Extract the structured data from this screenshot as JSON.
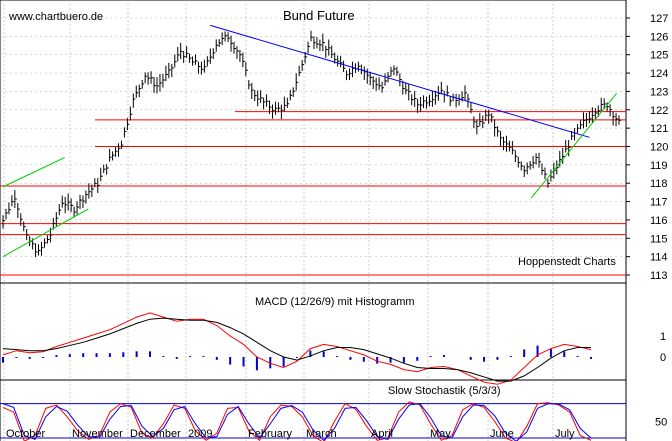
{
  "chart_data": [
    {
      "type": "candlestick",
      "title": "Bund Future",
      "watermark": "www.chartbuero.de",
      "source": "Hoppenstedt Charts",
      "y_axis": {
        "ticks": [
          113,
          114,
          115,
          116,
          117,
          118,
          119,
          120,
          121,
          122,
          123,
          124,
          125,
          126,
          127
        ],
        "ylim": [
          112.6,
          127.6
        ]
      },
      "x_axis": {
        "labels": [
          "October",
          "November",
          "December",
          "2009",
          "February",
          "March",
          "April",
          "May",
          "June",
          "July"
        ]
      },
      "bars_weekly_close": [
        {
          "t": 0,
          "c": 116.0
        },
        {
          "t": 1,
          "c": 117.3
        },
        {
          "t": 2,
          "c": 115.0
        },
        {
          "t": 3,
          "c": 114.2
        },
        {
          "t": 4,
          "c": 115.2
        },
        {
          "t": 5,
          "c": 117.0
        },
        {
          "t": 6,
          "c": 116.6
        },
        {
          "t": 7,
          "c": 117.4
        },
        {
          "t": 8,
          "c": 118.0
        },
        {
          "t": 9,
          "c": 119.3
        },
        {
          "t": 10,
          "c": 120.2
        },
        {
          "t": 11,
          "c": 122.5
        },
        {
          "t": 12,
          "c": 123.9
        },
        {
          "t": 13,
          "c": 123.3
        },
        {
          "t": 14,
          "c": 124.0
        },
        {
          "t": 15,
          "c": 125.2
        },
        {
          "t": 16,
          "c": 124.6
        },
        {
          "t": 17,
          "c": 124.2
        },
        {
          "t": 18,
          "c": 125.6
        },
        {
          "t": 19,
          "c": 126.0
        },
        {
          "t": 20,
          "c": 125.0
        },
        {
          "t": 21,
          "c": 123.0
        },
        {
          "t": 22,
          "c": 122.4
        },
        {
          "t": 23,
          "c": 122.0
        },
        {
          "t": 24,
          "c": 122.2
        },
        {
          "t": 25,
          "c": 124.0
        },
        {
          "t": 26,
          "c": 125.9
        },
        {
          "t": 27,
          "c": 125.6
        },
        {
          "t": 28,
          "c": 124.8
        },
        {
          "t": 29,
          "c": 124.0
        },
        {
          "t": 30,
          "c": 124.5
        },
        {
          "t": 31,
          "c": 123.7
        },
        {
          "t": 32,
          "c": 123.2
        },
        {
          "t": 33,
          "c": 124.3
        },
        {
          "t": 34,
          "c": 123.0
        },
        {
          "t": 35,
          "c": 122.3
        },
        {
          "t": 36,
          "c": 122.6
        },
        {
          "t": 37,
          "c": 123.1
        },
        {
          "t": 38,
          "c": 122.5
        },
        {
          "t": 39,
          "c": 122.9
        },
        {
          "t": 40,
          "c": 121.0
        },
        {
          "t": 41,
          "c": 121.8
        },
        {
          "t": 42,
          "c": 120.4
        },
        {
          "t": 43,
          "c": 119.7
        },
        {
          "t": 44,
          "c": 118.8
        },
        {
          "t": 45,
          "c": 119.4
        },
        {
          "t": 46,
          "c": 118.0
        },
        {
          "t": 47,
          "c": 119.2
        },
        {
          "t": 48,
          "c": 120.4
        },
        {
          "t": 49,
          "c": 121.3
        },
        {
          "t": 50,
          "c": 122.0
        },
        {
          "t": 51,
          "c": 122.3
        },
        {
          "t": 52,
          "c": 121.3
        }
      ],
      "horizontal_lines_red": [
        121.9,
        121.45,
        120.0,
        117.85,
        115.8,
        115.2,
        113.0
      ],
      "trend_lines": [
        {
          "color": "#0000ff",
          "from": [
            17.5,
            126.6
          ],
          "to": [
            49.5,
            120.5
          ]
        },
        {
          "color": "#00cc00",
          "from": [
            0,
            117.8
          ],
          "to": [
            5.2,
            119.4
          ]
        },
        {
          "color": "#00cc00",
          "from": [
            0,
            114.0
          ],
          "to": [
            7.2,
            116.6
          ]
        },
        {
          "color": "#00cc00",
          "from": [
            44.6,
            117.2
          ],
          "to": [
            51.8,
            122.9
          ]
        }
      ]
    },
    {
      "type": "line",
      "title": "MACD (12/26/9) mit Histogramm",
      "y_axis": {
        "ticks": [
          1,
          0
        ],
        "ylim": [
          -2.4,
          2.5
        ]
      },
      "series": [
        {
          "color": "#ff0000",
          "values": [
            0.1,
            0.3,
            0.2,
            0.25,
            0.5,
            0.7,
            0.9,
            1.1,
            1.3,
            1.6,
            1.9,
            2.1,
            1.9,
            1.7,
            1.8,
            1.8,
            1.5,
            1.0,
            0.6,
            0.0,
            -0.3,
            -0.5,
            -0.2,
            0.4,
            0.6,
            0.5,
            0.3,
            0.1,
            -0.2,
            -0.35,
            -0.6,
            -0.7,
            -0.5,
            -0.45,
            -0.6,
            -0.9,
            -1.2,
            -1.3,
            -1.1,
            -0.5,
            0.1,
            0.4,
            0.6,
            0.5,
            0.35
          ]
        },
        {
          "color": "#000000",
          "values": [
            0.4,
            0.35,
            0.3,
            0.3,
            0.4,
            0.55,
            0.7,
            0.9,
            1.1,
            1.35,
            1.6,
            1.8,
            1.85,
            1.8,
            1.75,
            1.75,
            1.65,
            1.4,
            1.1,
            0.7,
            0.3,
            0.0,
            -0.15,
            0.05,
            0.3,
            0.45,
            0.45,
            0.35,
            0.15,
            -0.05,
            -0.3,
            -0.5,
            -0.55,
            -0.55,
            -0.6,
            -0.75,
            -0.95,
            -1.15,
            -1.15,
            -0.9,
            -0.5,
            -0.05,
            0.3,
            0.45,
            0.45
          ]
        }
      ]
    },
    {
      "type": "line",
      "title": "Slow Stochastik (5/3/3)",
      "y_axis": {
        "ticks": [
          50
        ],
        "ylim": [
          -5,
          105
        ]
      },
      "series": [
        {
          "color": "#ff0000",
          "values": [
            80,
            70,
            8,
            20,
            78,
            85,
            60,
            30,
            12,
            20,
            70,
            88,
            80,
            25,
            15,
            45,
            85,
            78,
            30,
            10,
            25,
            78,
            80,
            30,
            10,
            60,
            85,
            82,
            60,
            20,
            5,
            50,
            88,
            76,
            40,
            10,
            15,
            70,
            92,
            85,
            45,
            10,
            20,
            75,
            88,
            80,
            50,
            15,
            5,
            40,
            88,
            90,
            85,
            70,
            20,
            10
          ]
        },
        {
          "color": "#0000ff",
          "values": [
            88,
            80,
            20,
            12,
            60,
            82,
            72,
            42,
            18,
            15,
            55,
            82,
            84,
            40,
            18,
            35,
            75,
            82,
            45,
            15,
            18,
            65,
            82,
            45,
            15,
            45,
            78,
            84,
            70,
            32,
            10,
            35,
            78,
            80,
            52,
            18,
            12,
            55,
            85,
            88,
            58,
            20,
            15,
            60,
            85,
            84,
            62,
            25,
            8,
            28,
            78,
            88,
            87,
            75,
            35,
            15
          ]
        }
      ],
      "hlines": [
        88,
        15
      ]
    }
  ],
  "legend": {
    "watermark": "www.chartbuero.de",
    "title": "Bund Future",
    "source": "Hoppenstedt Charts",
    "macd_label": "MACD (12/26/9) mit Histogramm",
    "stoch_label": "Slow Stochastik (5/3/3)"
  },
  "colors": {
    "price": "#000000",
    "support_lines": "#ff0000",
    "downtrend": "#0000ff",
    "uptrend": "#00cc00",
    "grid": "#b0b0b0"
  }
}
